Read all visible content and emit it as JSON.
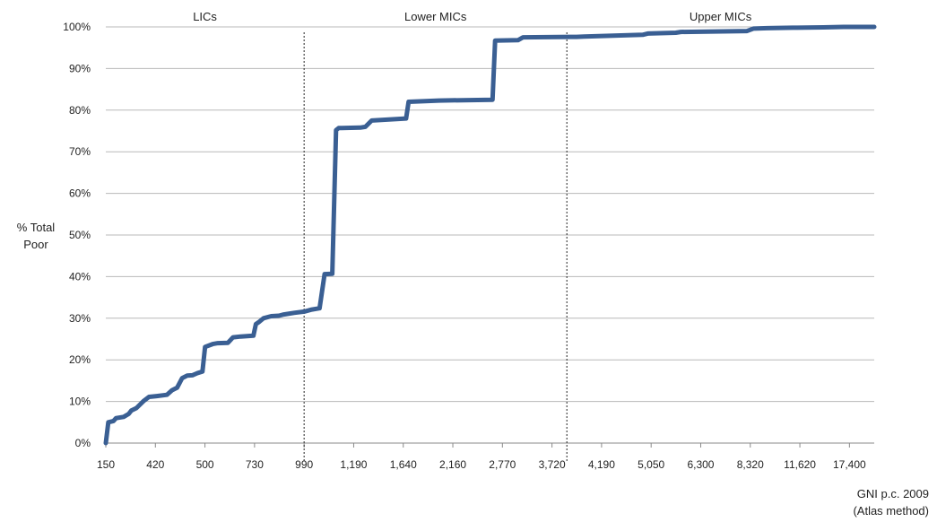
{
  "chart_data": {
    "type": "line",
    "ylabel": [
      "% Total",
      "Poor"
    ],
    "xlabel": [
      "GNI p.c. 2009",
      "(Atlas method)"
    ],
    "ylim": [
      0,
      100
    ],
    "y_ticks": [
      "0%",
      "10%",
      "20%",
      "30%",
      "40%",
      "50%",
      "60%",
      "70%",
      "80%",
      "90%",
      "100%"
    ],
    "x_ticks": [
      "150",
      "420",
      "500",
      "730",
      "990",
      "1,190",
      "1,640",
      "2,160",
      "2,770",
      "3,720",
      "4,190",
      "5,050",
      "6,300",
      "8,320",
      "11,620",
      "17,400"
    ],
    "regions": [
      {
        "label": "LICs"
      },
      {
        "label": "Lower MICs"
      },
      {
        "label": "Upper MICs"
      }
    ],
    "thresholds_at_tick": [
      4.0,
      9.3
    ],
    "grid": true,
    "series": [
      {
        "color": "#3a5f93",
        "points": [
          [
            0.0,
            0
          ],
          [
            0.1,
            5
          ],
          [
            0.3,
            5.3
          ],
          [
            0.4,
            6
          ],
          [
            0.7,
            6.3
          ],
          [
            0.9,
            7
          ],
          [
            1.0,
            7.8
          ],
          [
            1.2,
            8.4
          ],
          [
            1.5,
            10.2
          ],
          [
            1.7,
            11.1
          ],
          [
            2.0,
            11.3
          ],
          [
            2.4,
            11.6
          ],
          [
            2.6,
            12.7
          ],
          [
            2.8,
            13.3
          ],
          [
            3.0,
            15.6
          ],
          [
            3.2,
            16.2
          ],
          [
            3.4,
            16.3
          ],
          [
            3.6,
            16.8
          ],
          [
            3.8,
            17.2
          ],
          [
            3.9,
            23.1
          ],
          [
            4.2,
            23.8
          ],
          [
            4.4,
            24
          ],
          [
            4.8,
            24.1
          ],
          [
            5.0,
            25.4
          ],
          [
            5.3,
            25.6
          ],
          [
            5.8,
            25.8
          ],
          [
            5.9,
            28.6
          ],
          [
            6.0,
            29
          ],
          [
            6.2,
            30
          ],
          [
            6.5,
            30.5
          ],
          [
            6.8,
            30.6
          ],
          [
            7.0,
            30.9
          ],
          [
            7.4,
            31.3
          ],
          [
            7.8,
            31.6
          ],
          [
            8.1,
            32.1
          ],
          [
            8.4,
            32.4
          ],
          [
            8.6,
            40.6
          ],
          [
            8.9,
            40.7
          ],
          [
            9.05,
            75.2
          ],
          [
            9.15,
            75.7
          ],
          [
            10.0,
            75.8
          ],
          [
            10.2,
            76.0
          ],
          [
            10.45,
            77.5
          ],
          [
            11.8,
            78
          ],
          [
            11.9,
            82
          ],
          [
            13.1,
            82.3
          ],
          [
            15.2,
            82.5
          ],
          [
            15.3,
            96.7
          ],
          [
            16.2,
            96.8
          ],
          [
            16.4,
            97.5
          ],
          [
            18.5,
            97.6
          ],
          [
            18.8,
            97.7
          ],
          [
            21.1,
            98.1
          ],
          [
            21.3,
            98.4
          ],
          [
            22.4,
            98.6
          ],
          [
            22.6,
            98.8
          ],
          [
            25.2,
            99
          ],
          [
            25.45,
            99.6
          ],
          [
            26,
            99.7
          ],
          [
            27,
            99.8
          ],
          [
            28.2,
            99.9
          ],
          [
            29,
            100
          ],
          [
            30.2,
            100
          ]
        ]
      }
    ]
  }
}
